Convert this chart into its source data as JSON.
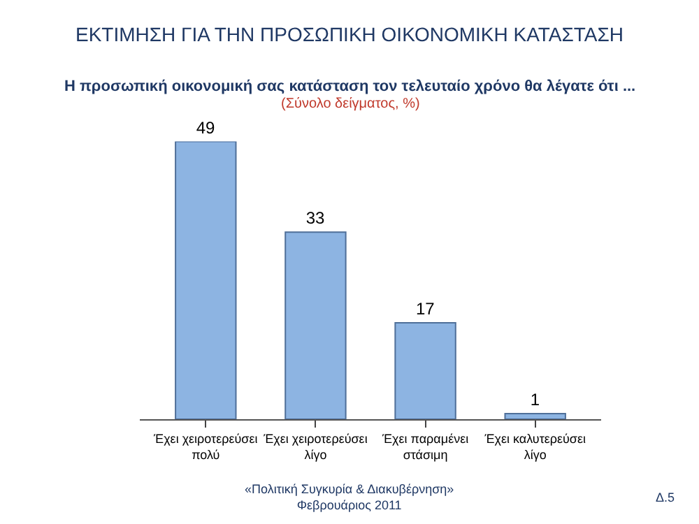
{
  "chart_data": {
    "type": "bar",
    "title": "ΕΚΤΙΜΗΣΗ ΓΙΑ ΤΗΝ ΠΡΟΣΩΠΙΚΗ ΟΙΚΟΝΟΜΙΚΗ ΚΑΤΑΣΤΑΣΗ",
    "subtitle": "Η προσωπική οικονομική σας κατάσταση τον τελευταίο χρόνο θα λέγατε ότι ...",
    "categories": [
      "Έχει χειροτερεύσει\nπολύ",
      "Έχει χειροτερεύσει\nλίγο",
      "Έχει παραμένει\nστάσιμη",
      "Έχει καλυτερεύσει\nλίγο"
    ],
    "values": [
      49,
      33,
      17,
      1
    ],
    "color": "#8db4e2",
    "data_labels": true,
    "tick_labels": "x",
    "annotations": [
      "(Σύνολο δείγματος, %)",
      "«Πολιτική Συγκυρία & Διακυβέρνηση»\nΦεβρουάριος 2011",
      "Δ.5"
    ]
  }
}
